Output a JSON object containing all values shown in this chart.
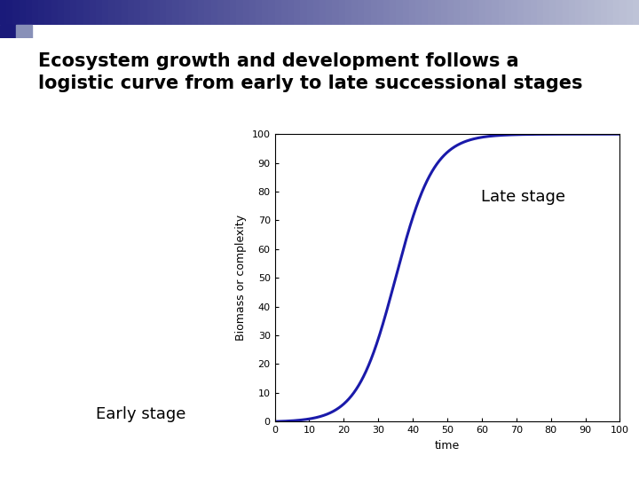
{
  "title_line1": "Ecosystem growth and development follows a",
  "title_line2": "logistic curve from early to late successional stages",
  "xlabel": "time",
  "ylabel": "Biomass or complexity",
  "xlim": [
    0,
    100
  ],
  "ylim": [
    0,
    100
  ],
  "xticks": [
    0,
    10,
    20,
    30,
    40,
    50,
    60,
    70,
    80,
    90,
    100
  ],
  "yticks": [
    0,
    10,
    20,
    30,
    40,
    50,
    60,
    70,
    80,
    90,
    100
  ],
  "curve_color": "#1a1aaa",
  "curve_linewidth": 2.2,
  "logistic_L": 100,
  "logistic_k": 0.18,
  "logistic_x0": 35,
  "early_stage_label": "Early stage",
  "late_stage_label": "Late stage",
  "background_color": "#ffffff",
  "title_fontsize": 15,
  "axis_label_fontsize": 9,
  "annotation_fontsize": 13,
  "fig_width": 7.2,
  "fig_height": 5.4,
  "header_color_dark": "#1a1a7a",
  "header_color_mid": "#4a5090",
  "header_color_light": "#9099bb"
}
